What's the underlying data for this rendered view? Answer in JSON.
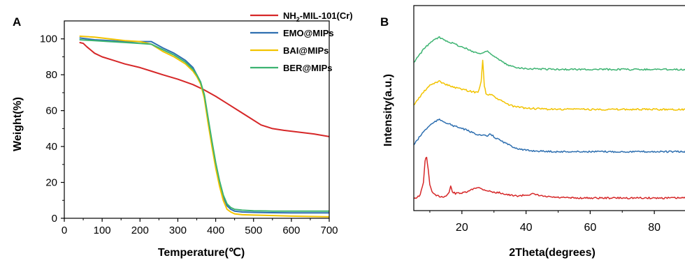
{
  "chart_data": [
    {
      "panel": "A",
      "type": "line",
      "xlabel": "Temperature(℃)",
      "ylabel": "Weight(%)",
      "xlim": [
        0,
        700
      ],
      "ylim": [
        0,
        110
      ],
      "xticks": [
        0,
        100,
        200,
        300,
        400,
        500,
        600,
        700
      ],
      "yticks": [
        0,
        20,
        40,
        60,
        80,
        100
      ],
      "grid": false,
      "legend": "top-right",
      "series": [
        {
          "name": "NH2-MIL-101(Cr)",
          "color": "#d62728",
          "x": [
            40,
            50,
            60,
            80,
            100,
            130,
            160,
            200,
            230,
            260,
            300,
            340,
            370,
            400,
            430,
            460,
            490,
            520,
            550,
            580,
            620,
            660,
            700
          ],
          "y": [
            98,
            97.5,
            95.5,
            92,
            90,
            88,
            86,
            84,
            82,
            80,
            77.5,
            74.5,
            71.5,
            68,
            64,
            60,
            56,
            52,
            50,
            49,
            48,
            47,
            45.5
          ]
        },
        {
          "name": "EMO@MIPs",
          "color": "#2e6fb0",
          "x": [
            40,
            80,
            120,
            160,
            200,
            230,
            260,
            290,
            320,
            340,
            350,
            360,
            370,
            380,
            390,
            400,
            410,
            420,
            430,
            440,
            450,
            470,
            500,
            550,
            600,
            650,
            700
          ],
          "y": [
            100.5,
            99.5,
            99,
            98.5,
            98.5,
            98.5,
            95,
            92,
            88,
            84,
            80,
            76,
            68,
            55,
            42,
            30,
            20,
            12,
            7,
            5,
            4,
            3.5,
            3.3,
            3.1,
            3,
            3,
            3
          ]
        },
        {
          "name": "BAI@MIPs",
          "color": "#f2c300",
          "x": [
            40,
            80,
            120,
            160,
            200,
            230,
            260,
            290,
            320,
            340,
            350,
            360,
            370,
            380,
            390,
            400,
            410,
            420,
            430,
            440,
            450,
            470,
            500,
            550,
            600,
            650,
            700
          ],
          "y": [
            101.5,
            101,
            100,
            99,
            98.5,
            97,
            93,
            90,
            86,
            82,
            79,
            75,
            67,
            53,
            40,
            28,
            18,
            10,
            5,
            3.5,
            2.5,
            2,
            1.8,
            1.5,
            1.2,
            1,
            0.8
          ]
        },
        {
          "name": "BER@MIPs",
          "color": "#3cb371",
          "x": [
            40,
            80,
            120,
            160,
            200,
            230,
            260,
            290,
            320,
            340,
            350,
            360,
            370,
            380,
            390,
            400,
            410,
            420,
            430,
            440,
            450,
            470,
            500,
            550,
            600,
            650,
            700
          ],
          "y": [
            99.5,
            99,
            98.5,
            98,
            97.5,
            97,
            94,
            91,
            87,
            83,
            80,
            76,
            69,
            56,
            43,
            31,
            21,
            13,
            8,
            6,
            5,
            4.5,
            4.2,
            4,
            4,
            4,
            4
          ]
        }
      ]
    },
    {
      "panel": "B",
      "type": "line",
      "xlabel": "2Theta(degrees)",
      "ylabel": "Intensity(a.u.)",
      "xlim": [
        5,
        90
      ],
      "xticks": [
        20,
        40,
        60,
        80
      ],
      "y_ticks_shown": false,
      "grid": false,
      "series": [
        {
          "color": "#d62728",
          "offset": 0,
          "x": [
            5,
            6,
            7,
            8,
            8.5,
            9,
            9.5,
            10,
            11,
            12,
            14,
            15,
            16,
            16.5,
            17,
            18,
            19,
            20,
            22,
            24,
            25,
            26,
            28,
            30,
            32,
            34,
            36,
            38,
            40,
            42,
            44,
            46,
            50,
            55,
            60,
            70,
            80,
            90
          ],
          "y": [
            5,
            6,
            12,
            40,
            92,
            100,
            70,
            35,
            15,
            10,
            8,
            9,
            18,
            32,
            20,
            15,
            17,
            16,
            20,
            28,
            30,
            26,
            22,
            18,
            17,
            13,
            10,
            10,
            12,
            14,
            11,
            8,
            6,
            5,
            5,
            5,
            5,
            5
          ]
        },
        {
          "color": "#2e6fb0",
          "offset": 1,
          "x": [
            5,
            6,
            8,
            10,
            12,
            13,
            14,
            16,
            18,
            20,
            22,
            24,
            26,
            28,
            29,
            30,
            32,
            34,
            36,
            38,
            40,
            45,
            50,
            55,
            60,
            70,
            80,
            90
          ],
          "y": [
            20,
            30,
            50,
            65,
            75,
            78,
            75,
            68,
            62,
            58,
            52,
            46,
            42,
            40,
            45,
            38,
            30,
            22,
            15,
            10,
            7,
            5,
            4,
            4,
            4,
            4,
            4,
            4
          ]
        },
        {
          "color": "#f2c300",
          "offset": 2,
          "x": [
            5,
            6,
            8,
            10,
            12,
            13,
            14,
            16,
            18,
            20,
            22,
            24,
            25,
            26,
            26.5,
            27,
            27.5,
            28,
            29,
            30,
            32,
            34,
            36,
            40,
            45,
            50,
            55,
            60,
            70,
            80,
            90
          ],
          "y": [
            15,
            25,
            45,
            60,
            68,
            70,
            66,
            60,
            55,
            52,
            48,
            45,
            44,
            70,
            120,
            60,
            42,
            38,
            40,
            34,
            26,
            18,
            12,
            8,
            6,
            5,
            6,
            5,
            5,
            5,
            5
          ]
        },
        {
          "color": "#3cb371",
          "offset": 3,
          "x": [
            5,
            6,
            8,
            10,
            12,
            13,
            14,
            16,
            18,
            20,
            22,
            24,
            26,
            27,
            28,
            29,
            30,
            32,
            34,
            36,
            40,
            45,
            50,
            55,
            60,
            70,
            80,
            90
          ],
          "y": [
            20,
            30,
            50,
            65,
            75,
            78,
            74,
            68,
            62,
            56,
            50,
            44,
            40,
            44,
            48,
            40,
            34,
            24,
            15,
            10,
            6,
            5,
            4,
            4,
            4,
            4,
            4,
            4
          ]
        }
      ]
    }
  ],
  "panel_labels": {
    "a": "A",
    "b": "B"
  },
  "legend_a": [
    {
      "base": "NH",
      "sub": "2",
      "rest": "-MIL-101(Cr)",
      "color": "#d62728"
    },
    {
      "base": "EMO@MIPs",
      "sub": "",
      "rest": "",
      "color": "#2e6fb0"
    },
    {
      "base": "BAI@MIPs",
      "sub": "",
      "rest": "",
      "color": "#f2c300"
    },
    {
      "base": "BER@MIPs",
      "sub": "",
      "rest": "",
      "color": "#3cb371"
    }
  ]
}
